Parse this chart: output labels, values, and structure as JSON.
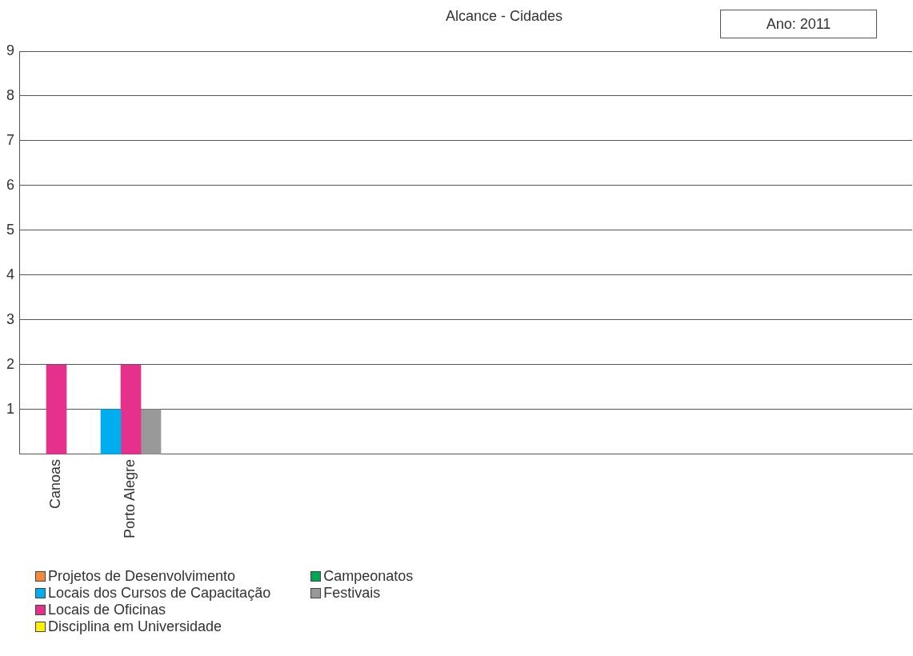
{
  "chart_data": {
    "type": "bar",
    "title": "Alcance - Cidades",
    "annotations": [
      "Ano: 2011"
    ],
    "categories": [
      "Canoas",
      "Porto Alegre",
      null,
      null,
      null,
      null,
      null,
      null,
      null,
      null,
      null,
      null
    ],
    "series": [
      {
        "name": "Projetos de Desenvolvimento",
        "color": "#f08a3c",
        "values": [
          null,
          null,
          null,
          null,
          null,
          null,
          null,
          null,
          null,
          null,
          null,
          null
        ]
      },
      {
        "name": "Locais dos Cursos de Capacitação",
        "color": "#00aeef",
        "values": [
          null,
          1,
          null,
          null,
          null,
          null,
          null,
          null,
          null,
          null,
          null,
          null
        ]
      },
      {
        "name": "Locais de Oficinas",
        "color": "#e5318b",
        "values": [
          2,
          2,
          null,
          null,
          null,
          null,
          null,
          null,
          null,
          null,
          null,
          null
        ]
      },
      {
        "name": "Disciplina em Universidade",
        "color": "#fff200",
        "values": [
          null,
          null,
          null,
          null,
          null,
          null,
          null,
          null,
          null,
          null,
          null,
          null
        ]
      },
      {
        "name": "Campeonatos",
        "color": "#00a651",
        "values": [
          null,
          null,
          null,
          null,
          null,
          null,
          null,
          null,
          null,
          null,
          null,
          null
        ]
      },
      {
        "name": "Festivais",
        "color": "#999999",
        "values": [
          null,
          1,
          null,
          null,
          null,
          null,
          null,
          null,
          null,
          null,
          null,
          null
        ]
      }
    ],
    "ylim": [
      0,
      9
    ],
    "yticks": [
      {
        "value": 0,
        "label": null
      },
      1,
      2,
      3,
      4,
      5,
      6,
      7,
      8,
      9
    ],
    "grid": "y",
    "legend": "bottom left"
  }
}
